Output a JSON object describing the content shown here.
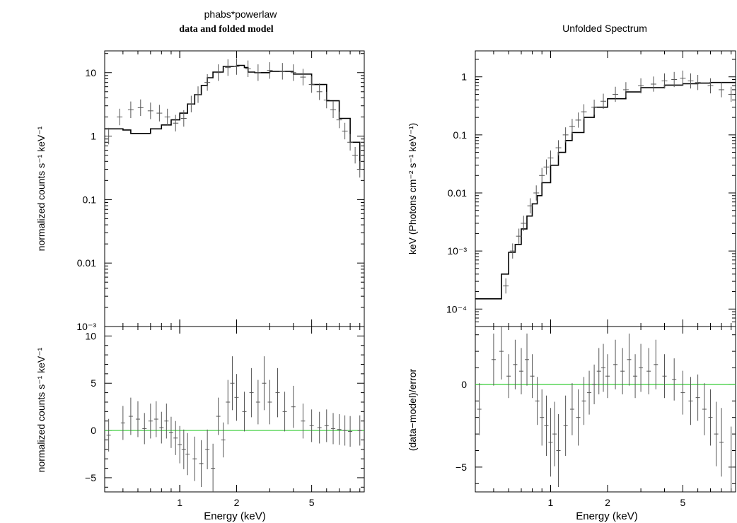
{
  "chart_data": [
    {
      "type": "line",
      "title": "phabs*powerlaw",
      "subtitle": "data and folded model",
      "top": {
        "ylabel": "normalized counts s⁻¹ keV⁻¹",
        "yscale": "log",
        "ylim": [
          0.001,
          22
        ],
        "yticks": [
          {
            "v": 10,
            "label": "10"
          },
          {
            "v": 1,
            "label": "1"
          },
          {
            "v": 0.1,
            "label": "0.1"
          },
          {
            "v": 0.01,
            "label": "0.01"
          },
          {
            "v": 0.001,
            "label": "10⁻³"
          }
        ],
        "series": [
          {
            "role": "model",
            "x": [
              0.4,
              0.5,
              0.55,
              0.6,
              0.7,
              0.8,
              0.9,
              1.0,
              1.1,
              1.2,
              1.3,
              1.4,
              1.5,
              1.7,
              2.0,
              2.2,
              2.3,
              2.5,
              3.0,
              4.0,
              5.0,
              6.0,
              7.0,
              8.0,
              9.0
            ],
            "y": [
              1.3,
              1.25,
              1.1,
              1.1,
              1.3,
              1.5,
              1.8,
              2.3,
              3.2,
              4.5,
              6.3,
              8.3,
              10.2,
              12.5,
              13.0,
              12.0,
              10.2,
              10.0,
              10.5,
              9.5,
              6.5,
              3.6,
              1.9,
              0.8,
              0.3
            ]
          },
          {
            "role": "data",
            "x": [
              0.42,
              0.48,
              0.55,
              0.62,
              0.7,
              0.78,
              0.86,
              0.95,
              1.05,
              1.15,
              1.25,
              1.4,
              1.6,
              1.8,
              2.0,
              2.3,
              2.6,
              3.0,
              3.5,
              4.0,
              4.5,
              5.0,
              5.5,
              6.0,
              6.5,
              7.0,
              7.5,
              8.0,
              8.5,
              9.0
            ],
            "y": [
              1.0,
              2.0,
              2.6,
              2.8,
              2.5,
              2.3,
              2.0,
              1.6,
              1.9,
              3.2,
              4.5,
              7.0,
              10.0,
              12.0,
              12.5,
              11.5,
              10.0,
              10.8,
              10.5,
              10.0,
              8.5,
              6.5,
              5.0,
              3.7,
              2.6,
              1.8,
              1.2,
              0.8,
              0.5,
              0.3
            ]
          }
        ]
      },
      "bottom": {
        "ylabel": "normalized counts s⁻¹ keV⁻¹",
        "ylim": [
          -6.5,
          11
        ],
        "yticks": [
          {
            "v": 10,
            "label": "10"
          },
          {
            "v": 5,
            "label": "5"
          },
          {
            "v": 0,
            "label": "0"
          },
          {
            "v": -5,
            "label": "−5"
          }
        ],
        "series": [
          {
            "role": "residual",
            "x": [
              0.42,
              0.5,
              0.55,
              0.6,
              0.65,
              0.7,
              0.75,
              0.8,
              0.85,
              0.9,
              0.95,
              1.0,
              1.05,
              1.1,
              1.2,
              1.3,
              1.4,
              1.5,
              1.6,
              1.7,
              1.8,
              1.9,
              2.0,
              2.2,
              2.4,
              2.6,
              2.8,
              3.0,
              3.3,
              3.6,
              4.0,
              4.5,
              5.0,
              5.5,
              6.0,
              6.5,
              7.0,
              7.5,
              8.0,
              9.0
            ],
            "y": [
              -0.5,
              0.8,
              1.5,
              1.2,
              0.2,
              1.0,
              1.2,
              0.3,
              1.0,
              -0.2,
              -0.8,
              -1.5,
              -2.0,
              -2.5,
              -3.0,
              -3.5,
              -2.0,
              -4.0,
              1.5,
              -1.0,
              3.0,
              5.0,
              3.5,
              2.0,
              4.0,
              3.0,
              5.0,
              3.0,
              4.0,
              2.0,
              2.5,
              1.0,
              0.5,
              0.3,
              0.5,
              0.2,
              0.1,
              0.0,
              -0.1,
              0.0
            ]
          }
        ]
      },
      "xlabel": "Energy (keV)",
      "xscale": "log",
      "xlim": [
        0.4,
        9.5
      ],
      "xticks": [
        {
          "v": 1,
          "label": "1"
        },
        {
          "v": 2,
          "label": "2"
        },
        {
          "v": 5,
          "label": "5"
        }
      ]
    },
    {
      "type": "line",
      "title": "Unfolded Spectrum",
      "top": {
        "ylabel": "keV (Photons cm⁻² s⁻¹ keV⁻¹)",
        "yscale": "log",
        "ylim": [
          5e-05,
          2.8
        ],
        "yticks": [
          {
            "v": 1,
            "label": "1"
          },
          {
            "v": 0.1,
            "label": "0.1"
          },
          {
            "v": 0.01,
            "label": "0.01"
          },
          {
            "v": 0.001,
            "label": "10⁻³"
          },
          {
            "v": 0.0001,
            "label": "10⁻⁴"
          }
        ],
        "series": [
          {
            "role": "model",
            "x": [
              0.4,
              0.5,
              0.55,
              0.6,
              0.65,
              0.7,
              0.75,
              0.8,
              0.85,
              0.9,
              1.0,
              1.1,
              1.2,
              1.3,
              1.5,
              1.7,
              2.0,
              2.5,
              3.0,
              4.0,
              5.0,
              6.0,
              7.0,
              9.5
            ],
            "y": [
              0.00015,
              0.00015,
              0.0004,
              0.00095,
              0.0013,
              0.0024,
              0.004,
              0.0065,
              0.009,
              0.015,
              0.03,
              0.05,
              0.08,
              0.11,
              0.2,
              0.3,
              0.42,
              0.55,
              0.65,
              0.72,
              0.76,
              0.78,
              0.8,
              0.8
            ]
          },
          {
            "role": "data",
            "x": [
              0.58,
              0.63,
              0.68,
              0.72,
              0.78,
              0.84,
              0.9,
              0.95,
              1.0,
              1.1,
              1.2,
              1.3,
              1.4,
              1.5,
              1.7,
              1.9,
              2.2,
              2.5,
              3.0,
              3.5,
              4.0,
              4.5,
              5.0,
              5.5,
              6.0,
              7.0,
              8.0,
              9.0
            ],
            "y": [
              0.00025,
              0.001,
              0.0018,
              0.003,
              0.006,
              0.01,
              0.02,
              0.028,
              0.04,
              0.06,
              0.1,
              0.14,
              0.18,
              0.25,
              0.3,
              0.38,
              0.5,
              0.6,
              0.7,
              0.75,
              0.85,
              0.9,
              0.95,
              0.85,
              0.8,
              0.7,
              0.6,
              0.5
            ]
          }
        ]
      },
      "bottom": {
        "ylabel": "(data−model)/error",
        "ylim": [
          -6.5,
          3.5
        ],
        "yticks": [
          {
            "v": 0,
            "label": "0"
          },
          {
            "v": -5,
            "label": "−5"
          }
        ],
        "series": [
          {
            "role": "residual",
            "x": [
              0.42,
              0.5,
              0.55,
              0.6,
              0.65,
              0.7,
              0.75,
              0.8,
              0.85,
              0.9,
              0.95,
              1.0,
              1.05,
              1.1,
              1.2,
              1.3,
              1.4,
              1.5,
              1.6,
              1.7,
              1.8,
              1.9,
              2.0,
              2.2,
              2.4,
              2.6,
              2.8,
              3.0,
              3.3,
              3.6,
              4.0,
              4.5,
              5.0,
              5.5,
              6.0,
              6.5,
              7.0,
              7.5,
              8.0,
              9.0
            ],
            "y": [
              -1.5,
              1.5,
              2.0,
              0.5,
              1.2,
              0.8,
              1.5,
              0.5,
              -1.0,
              -2.0,
              -2.5,
              -3.5,
              -3.0,
              -4.0,
              -2.5,
              -1.5,
              -2.0,
              -1.0,
              -0.5,
              0.0,
              0.8,
              1.0,
              0.5,
              1.2,
              0.8,
              1.5,
              0.5,
              1.0,
              0.8,
              1.2,
              0.5,
              0.3,
              -0.5,
              -1.0,
              -0.8,
              -1.5,
              -2.0,
              -3.0,
              -3.5,
              -5.0
            ]
          }
        ]
      },
      "xlabel": "Energy (keV)",
      "xscale": "log",
      "xlim": [
        0.4,
        9.5
      ],
      "xticks": [
        {
          "v": 1,
          "label": "1"
        },
        {
          "v": 2,
          "label": "2"
        },
        {
          "v": 5,
          "label": "5"
        }
      ]
    }
  ],
  "colors": {
    "model": "#000000",
    "data": "#555555",
    "axis": "#000000",
    "zero_line": "#33cc33"
  }
}
